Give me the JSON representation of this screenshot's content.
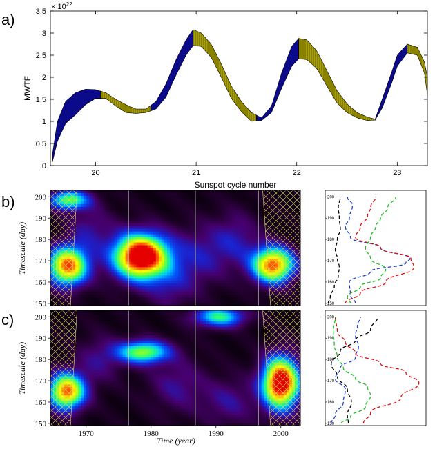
{
  "panels": {
    "a": "a)",
    "b": "b)",
    "c": "c)"
  },
  "chart_data": [
    {
      "type": "area",
      "panel": "a",
      "ylabel": "MWTF",
      "xlabel": "Sunspot cycle number",
      "y_exponent": "× 10",
      "y_exponent_power": "22",
      "ylim": [
        0,
        3.5
      ],
      "yticks": [
        0,
        0.5,
        1,
        1.5,
        2,
        2.5,
        3,
        3.5
      ],
      "ytick_labels": [
        "0",
        "0.5",
        "1",
        "1.5",
        "2",
        "2.5",
        "3",
        "3.5"
      ],
      "xlim": [
        19.55,
        23.3
      ],
      "xticks": [
        20,
        21,
        22,
        23
      ],
      "xtick_labels": [
        "20",
        "21",
        "22",
        "23"
      ],
      "band_upper": [
        [
          19.57,
          0.25
        ],
        [
          19.62,
          1.0
        ],
        [
          19.7,
          1.45
        ],
        [
          19.8,
          1.65
        ],
        [
          19.9,
          1.73
        ],
        [
          20.0,
          1.72
        ],
        [
          20.1,
          1.65
        ],
        [
          20.2,
          1.5
        ],
        [
          20.3,
          1.38
        ],
        [
          20.4,
          1.28
        ],
        [
          20.5,
          1.28
        ],
        [
          20.6,
          1.45
        ],
        [
          20.7,
          1.85
        ],
        [
          20.8,
          2.4
        ],
        [
          20.9,
          2.85
        ],
        [
          20.97,
          3.08
        ],
        [
          21.05,
          3.0
        ],
        [
          21.15,
          2.75
        ],
        [
          21.25,
          2.3
        ],
        [
          21.35,
          1.8
        ],
        [
          21.45,
          1.45
        ],
        [
          21.55,
          1.2
        ],
        [
          21.65,
          1.08
        ],
        [
          21.75,
          1.35
        ],
        [
          21.85,
          2.1
        ],
        [
          21.95,
          2.7
        ],
        [
          22.02,
          2.88
        ],
        [
          22.1,
          2.85
        ],
        [
          22.2,
          2.6
        ],
        [
          22.3,
          2.15
        ],
        [
          22.4,
          1.7
        ],
        [
          22.5,
          1.4
        ],
        [
          22.6,
          1.2
        ],
        [
          22.7,
          1.1
        ],
        [
          22.78,
          1.05
        ],
        [
          22.85,
          1.5
        ],
        [
          22.95,
          2.15
        ],
        [
          23.0,
          2.5
        ],
        [
          23.1,
          2.75
        ],
        [
          23.2,
          2.68
        ],
        [
          23.27,
          2.35
        ],
        [
          23.3,
          2.0
        ]
      ],
      "band_lower": [
        [
          19.57,
          0.08
        ],
        [
          19.62,
          0.55
        ],
        [
          19.7,
          0.95
        ],
        [
          19.8,
          1.15
        ],
        [
          19.9,
          1.38
        ],
        [
          20.0,
          1.52
        ],
        [
          20.1,
          1.52
        ],
        [
          20.2,
          1.35
        ],
        [
          20.3,
          1.2
        ],
        [
          20.4,
          1.18
        ],
        [
          20.5,
          1.2
        ],
        [
          20.6,
          1.28
        ],
        [
          20.7,
          1.55
        ],
        [
          20.8,
          2.05
        ],
        [
          20.9,
          2.5
        ],
        [
          20.97,
          2.72
        ],
        [
          21.05,
          2.7
        ],
        [
          21.15,
          2.45
        ],
        [
          21.25,
          2.0
        ],
        [
          21.35,
          1.52
        ],
        [
          21.45,
          1.22
        ],
        [
          21.55,
          1.0
        ],
        [
          21.65,
          1.02
        ],
        [
          21.75,
          1.2
        ],
        [
          21.85,
          1.75
        ],
        [
          21.95,
          2.25
        ],
        [
          22.02,
          2.42
        ],
        [
          22.1,
          2.4
        ],
        [
          22.2,
          2.2
        ],
        [
          22.3,
          1.8
        ],
        [
          22.4,
          1.42
        ],
        [
          22.5,
          1.2
        ],
        [
          22.6,
          1.08
        ],
        [
          22.7,
          1.02
        ],
        [
          22.78,
          1.03
        ],
        [
          22.85,
          1.3
        ],
        [
          22.95,
          1.9
        ],
        [
          23.0,
          2.25
        ],
        [
          23.1,
          2.55
        ],
        [
          23.2,
          2.5
        ],
        [
          23.27,
          2.1
        ],
        [
          23.3,
          1.6
        ]
      ],
      "segments": [
        {
          "from": 19.57,
          "to": 20.05,
          "color": "#0a0a8a"
        },
        {
          "from": 20.05,
          "to": 20.55,
          "color": "#a8a000"
        },
        {
          "from": 20.55,
          "to": 20.97,
          "color": "#0a0a8a"
        },
        {
          "from": 20.97,
          "to": 21.6,
          "color": "#a8a000"
        },
        {
          "from": 21.6,
          "to": 22.02,
          "color": "#0a0a8a"
        },
        {
          "from": 22.02,
          "to": 22.78,
          "color": "#a8a000"
        },
        {
          "from": 22.78,
          "to": 23.1,
          "color": "#0a0a8a"
        },
        {
          "from": 23.1,
          "to": 23.3,
          "color": "#a8a000"
        }
      ]
    },
    {
      "type": "heatmap",
      "panel": "b",
      "ylabel": "Timescale (day)",
      "ylim": [
        149,
        203
      ],
      "yticks": [
        150,
        160,
        170,
        180,
        190,
        200
      ],
      "ytick_labels": [
        "150",
        "160",
        "170",
        "180",
        "190",
        "200"
      ],
      "xlim": [
        1964.5,
        2003
      ],
      "cycle_lines": [
        1976.5,
        1986.8,
        1996.5
      ],
      "blobs": [
        {
          "x": 1967.2,
          "y": 167.5,
          "a": 1.0,
          "sx": 2.2,
          "sy": 6.5
        },
        {
          "x": 1967.3,
          "y": 198.5,
          "a": 0.68,
          "sx": 2.2,
          "sy": 3.2
        },
        {
          "x": 1978.5,
          "y": 172,
          "a": 1.3,
          "sx": 3.0,
          "sy": 7.5
        },
        {
          "x": 1998.8,
          "y": 168,
          "a": 1.02,
          "sx": 2.3,
          "sy": 6.0
        },
        {
          "x": 1987.5,
          "y": 172,
          "a": 0.22,
          "sx": 3.0,
          "sy": 10
        },
        {
          "x": 1970.5,
          "y": 185,
          "a": 0.2,
          "sx": 2.5,
          "sy": 8
        },
        {
          "x": 1993,
          "y": 180,
          "a": 0.22,
          "sx": 2.5,
          "sy": 9
        },
        {
          "x": 1983,
          "y": 158,
          "a": 0.18,
          "sx": 2.5,
          "sy": 8
        }
      ]
    },
    {
      "type": "heatmap",
      "panel": "c",
      "ylabel": "Timescale (day)",
      "xlabel": "Time (year)",
      "ylim": [
        149,
        203
      ],
      "yticks": [
        150,
        160,
        170,
        180,
        190,
        200
      ],
      "ytick_labels": [
        "150",
        "160",
        "170",
        "180",
        "190",
        "200"
      ],
      "xlim": [
        1964.5,
        2003
      ],
      "xticks": [
        1970,
        1980,
        1990,
        2000
      ],
      "xtick_labels": [
        "1970",
        "1980",
        "1990",
        "2000"
      ],
      "cycle_lines": [
        1976.5,
        1986.8,
        1996.5
      ],
      "blobs": [
        {
          "x": 1967.0,
          "y": 165,
          "a": 1.0,
          "sx": 2.0,
          "sy": 6.0
        },
        {
          "x": 1978.8,
          "y": 183.5,
          "a": 0.72,
          "sx": 2.8,
          "sy": 3.8
        },
        {
          "x": 1990.5,
          "y": 200,
          "a": 0.6,
          "sx": 2.8,
          "sy": 3.5
        },
        {
          "x": 2000.0,
          "y": 169,
          "a": 1.22,
          "sx": 2.0,
          "sy": 8.5
        },
        {
          "x": 1984,
          "y": 168,
          "a": 0.2,
          "sx": 3,
          "sy": 9
        },
        {
          "x": 1992,
          "y": 160,
          "a": 0.2,
          "sx": 3,
          "sy": 8
        },
        {
          "x": 1972,
          "y": 180,
          "a": 0.18,
          "sx": 2.5,
          "sy": 8
        }
      ]
    },
    {
      "type": "line",
      "panel": "b-side",
      "ylim": [
        149,
        203
      ],
      "yticks": [
        150,
        160,
        170,
        180,
        190,
        200
      ],
      "ytick_labels": [
        "150",
        "160",
        "170",
        "180",
        "190",
        "200"
      ],
      "xlim": [
        0,
        1
      ],
      "series": [
        {
          "color": "#000000",
          "points": [
            [
              0.03,
              150
            ],
            [
              0.05,
              153
            ],
            [
              0.09,
              158
            ],
            [
              0.13,
              163
            ],
            [
              0.14,
              167
            ],
            [
              0.12,
              171
            ],
            [
              0.1,
              175
            ],
            [
              0.12,
              180
            ],
            [
              0.15,
              185
            ],
            [
              0.14,
              190
            ],
            [
              0.13,
              195
            ],
            [
              0.15,
              200
            ]
          ]
        },
        {
          "color": "#1f3fd0",
          "points": [
            [
              0.3,
              150
            ],
            [
              0.25,
              154
            ],
            [
              0.24,
              160
            ],
            [
              0.45,
              165
            ],
            [
              0.8,
              169
            ],
            [
              0.84,
              171
            ],
            [
              0.55,
              176
            ],
            [
              0.25,
              181
            ],
            [
              0.2,
              186
            ],
            [
              0.24,
              190
            ],
            [
              0.27,
              196
            ],
            [
              0.22,
              200
            ]
          ]
        },
        {
          "color": "#e01010",
          "points": [
            [
              0.2,
              150
            ],
            [
              0.35,
              155
            ],
            [
              0.6,
              160
            ],
            [
              0.88,
              167
            ],
            [
              0.85,
              171
            ],
            [
              0.55,
              176
            ],
            [
              0.3,
              181
            ],
            [
              0.35,
              186
            ],
            [
              0.42,
              191
            ],
            [
              0.45,
              195
            ],
            [
              0.5,
              200
            ]
          ]
        },
        {
          "color": "#20c020",
          "points": [
            [
              0.25,
              150
            ],
            [
              0.22,
              153
            ],
            [
              0.35,
              158
            ],
            [
              0.55,
              162
            ],
            [
              0.6,
              166
            ],
            [
              0.45,
              171
            ],
            [
              0.4,
              176
            ],
            [
              0.45,
              181
            ],
            [
              0.5,
              186
            ],
            [
              0.55,
              190
            ],
            [
              0.62,
              195
            ],
            [
              0.7,
              200
            ]
          ]
        }
      ]
    },
    {
      "type": "line",
      "panel": "c-side",
      "ylim": [
        149,
        203
      ],
      "yticks": [
        150,
        160,
        170,
        180,
        190,
        200
      ],
      "ytick_labels": [
        "150",
        "160",
        "170",
        "180",
        "190",
        "200"
      ],
      "xlim": [
        0,
        1
      ],
      "series": [
        {
          "color": "#000000",
          "points": [
            [
              0.23,
              150
            ],
            [
              0.22,
              154
            ],
            [
              0.26,
              160
            ],
            [
              0.22,
              166
            ],
            [
              0.12,
              172
            ],
            [
              0.06,
              178
            ],
            [
              0.15,
              184
            ],
            [
              0.3,
              189
            ],
            [
              0.45,
              194
            ],
            [
              0.52,
              200
            ]
          ]
        },
        {
          "color": "#1f3fd0",
          "points": [
            [
              0.06,
              150
            ],
            [
              0.1,
              154
            ],
            [
              0.18,
              160
            ],
            [
              0.2,
              166
            ],
            [
              0.1,
              171
            ],
            [
              0.15,
              176
            ],
            [
              0.3,
              181
            ],
            [
              0.33,
              186
            ],
            [
              0.3,
              191
            ],
            [
              0.32,
              196
            ],
            [
              0.35,
              200
            ]
          ]
        },
        {
          "color": "#e01010",
          "points": [
            [
              0.38,
              150
            ],
            [
              0.45,
              155
            ],
            [
              0.75,
              162
            ],
            [
              0.93,
              169
            ],
            [
              0.8,
              174
            ],
            [
              0.55,
              178
            ],
            [
              0.3,
              183
            ],
            [
              0.2,
              188
            ],
            [
              0.12,
              193
            ],
            [
              0.1,
              200
            ]
          ]
        },
        {
          "color": "#20c020",
          "points": [
            [
              0.16,
              150
            ],
            [
              0.25,
              153
            ],
            [
              0.4,
              158
            ],
            [
              0.45,
              163
            ],
            [
              0.42,
              167
            ],
            [
              0.3,
              171
            ],
            [
              0.18,
              176
            ],
            [
              0.12,
              181
            ],
            [
              0.09,
              187
            ],
            [
              0.08,
              193
            ],
            [
              0.1,
              200
            ]
          ]
        }
      ]
    }
  ]
}
